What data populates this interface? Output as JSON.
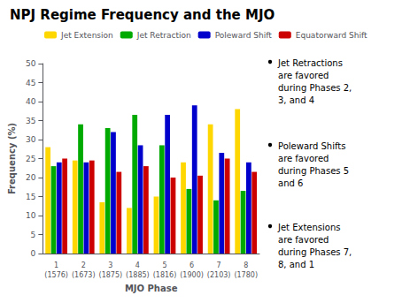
{
  "chart_data": {
    "type": "bar",
    "title": "NPJ Regime Frequency and the MJO",
    "x_label": "MJO Phase",
    "y_label": "Frequency (%)",
    "categories": [
      "1\n(1576)",
      "2\n(1673)",
      "3\n(1875)",
      "4\n(1885)",
      "5\n(1816)",
      "6\n(1900)",
      "7\n(2103)",
      "8\n(1780)"
    ],
    "series": [
      {
        "name": "Jet Extension",
        "color": "#FFD700",
        "values": [
          28.0,
          24.5,
          13.5,
          12.0,
          15.0,
          24.0,
          34.0,
          38.0
        ]
      },
      {
        "name": "Jet Retraction",
        "color": "#00AA00",
        "values": [
          23.0,
          34.0,
          33.0,
          36.5,
          28.5,
          17.0,
          14.0,
          16.5
        ]
      },
      {
        "name": "Poleward Shift",
        "color": "#0000CC",
        "values": [
          24.0,
          24.0,
          32.0,
          28.5,
          36.5,
          39.0,
          26.5,
          24.0
        ]
      },
      {
        "name": "Equatorward Shift",
        "color": "#CC0000",
        "values": [
          25.0,
          24.5,
          21.5,
          23.0,
          20.0,
          20.5,
          25.0,
          21.5
        ]
      }
    ],
    "ylim": [
      0,
      50
    ],
    "yticks": [
      0,
      5,
      10,
      15,
      20,
      25,
      30,
      35,
      40,
      45,
      50
    ],
    "grid": false,
    "legend": "upper right",
    "annotations": [
      "Jet Retractions\nare favored\nduring Phases 2,\n3, and 4",
      "Poleward Shifts\nare favored\nduring Phases 5\nand 6",
      "Jet Extensions\nare favored\nduring Phases 7,\n8, and 1"
    ]
  }
}
